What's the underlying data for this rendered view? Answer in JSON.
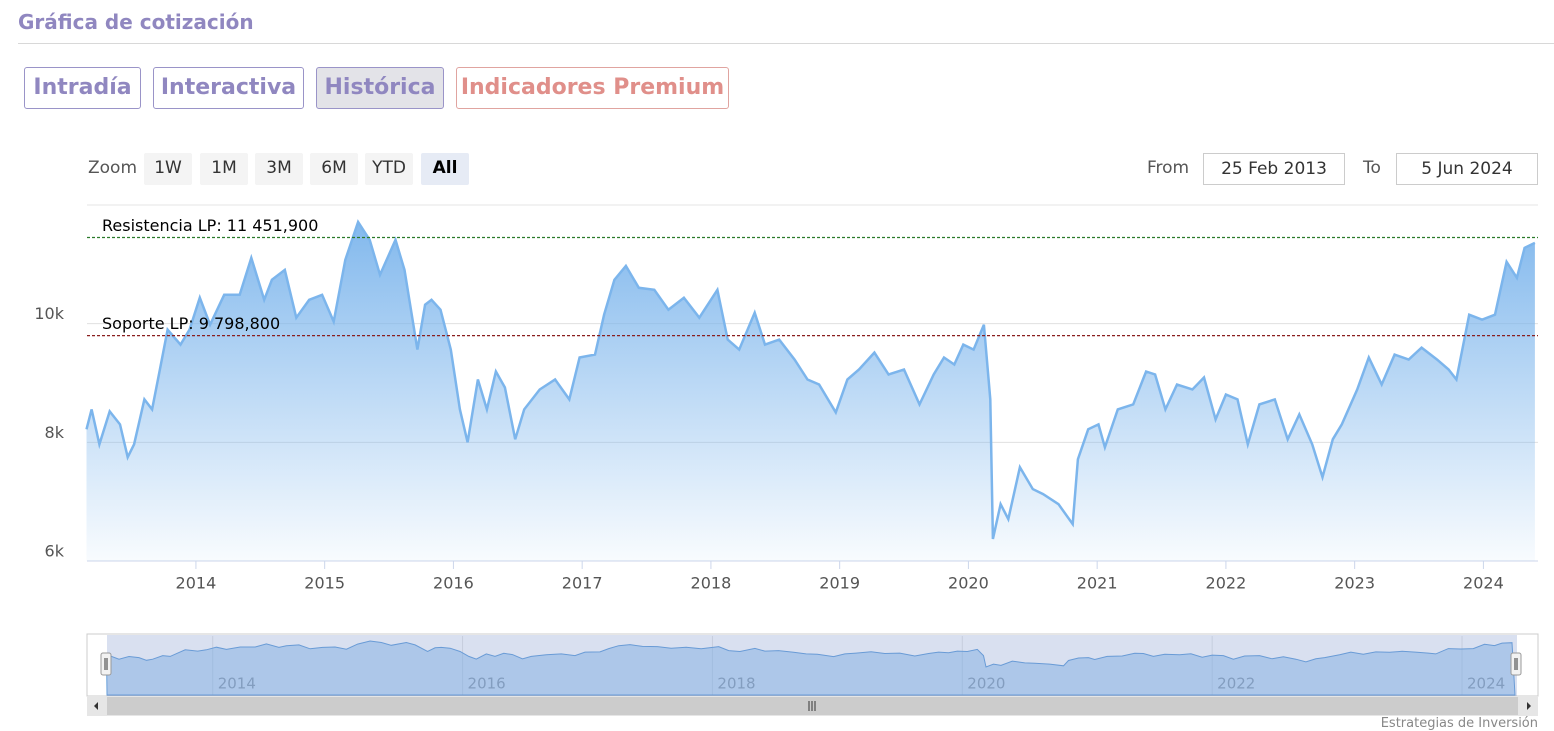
{
  "header": {
    "title": "Gráfica de cotización"
  },
  "tabs": [
    "Intradía",
    "Interactiva",
    "Histórica",
    "Indicadores Premium"
  ],
  "range_selector": {
    "zoom_label": "Zoom",
    "buttons": [
      "1W",
      "1M",
      "3M",
      "6M",
      "YTD",
      "All"
    ],
    "from_label": "From",
    "from": "25 Feb 2013",
    "to_label": "To",
    "to": "5 Jun 2024"
  },
  "chart_data": {
    "type": "area",
    "color": "#7cb5ec",
    "x": [
      2013.15,
      2013.19,
      2013.25,
      2013.33,
      2013.41,
      2013.47,
      2013.52,
      2013.6,
      2013.66,
      2013.72,
      2013.78,
      2013.88,
      2013.95,
      2014.03,
      2014.11,
      2014.22,
      2014.34,
      2014.43,
      2014.53,
      2014.59,
      2014.69,
      2014.78,
      2014.88,
      2014.98,
      2015.07,
      2015.16,
      2015.26,
      2015.35,
      2015.43,
      2015.55,
      2015.62,
      2015.72,
      2015.78,
      2015.83,
      2015.9,
      2015.98,
      2016.05,
      2016.11,
      2016.19,
      2016.26,
      2016.33,
      2016.4,
      2016.48,
      2016.55,
      2016.67,
      2016.79,
      2016.9,
      2016.98,
      2017.1,
      2017.17,
      2017.25,
      2017.34,
      2017.44,
      2017.56,
      2017.67,
      2017.79,
      2017.91,
      2018.05,
      2018.13,
      2018.22,
      2018.34,
      2018.42,
      2018.53,
      2018.65,
      2018.75,
      2018.84,
      2018.97,
      2019.06,
      2019.15,
      2019.27,
      2019.38,
      2019.5,
      2019.62,
      2019.73,
      2019.81,
      2019.89,
      2019.96,
      2020.04,
      2020.12,
      2020.17,
      2020.19,
      2020.25,
      2020.31,
      2020.4,
      2020.5,
      2020.58,
      2020.7,
      2020.81,
      2020.85,
      2020.93,
      2021.01,
      2021.06,
      2021.16,
      2021.28,
      2021.38,
      2021.45,
      2021.53,
      2021.62,
      2021.74,
      2021.83,
      2021.92,
      2022.0,
      2022.09,
      2022.17,
      2022.26,
      2022.38,
      2022.48,
      2022.57,
      2022.67,
      2022.75,
      2022.83,
      2022.9,
      2023.02,
      2023.11,
      2023.21,
      2023.31,
      2023.42,
      2023.52,
      2023.64,
      2023.73,
      2023.79,
      2023.89,
      2023.99,
      2024.09,
      2024.18,
      2024.26,
      2024.32,
      2024.4
    ],
    "values": [
      8219,
      8555,
      7967,
      8521,
      8303,
      7749,
      7967,
      8723,
      8555,
      9227,
      9899,
      9647,
      9899,
      10437,
      9983,
      10487,
      10487,
      11109,
      10403,
      10739,
      10907,
      10101,
      10403,
      10487,
      10034,
      11075,
      11714,
      11411,
      10823,
      11411,
      10907,
      9563,
      10319,
      10403,
      10235,
      9563,
      8555,
      8001,
      9059,
      8555,
      9193,
      8925,
      8051,
      8555,
      8891,
      9059,
      8723,
      9429,
      9479,
      10151,
      10739,
      10974,
      10605,
      10571,
      10235,
      10437,
      10101,
      10571,
      9731,
      9563,
      10185,
      9647,
      9731,
      9395,
      9059,
      8975,
      8504,
      9059,
      9227,
      9513,
      9143,
      9227,
      8639,
      9143,
      9429,
      9311,
      9647,
      9563,
      9983,
      8723,
      6370,
      6958,
      6706,
      7581,
      7211,
      7127,
      6958,
      6622,
      7715,
      8219,
      8303,
      7917,
      8555,
      8639,
      9193,
      9143,
      8555,
      8975,
      8891,
      9092,
      8387,
      8807,
      8723,
      7967,
      8639,
      8723,
      8051,
      8471,
      7967,
      7413,
      8051,
      8303,
      8891,
      9429,
      8975,
      9479,
      9395,
      9597,
      9395,
      9227,
      9059,
      10151,
      10067,
      10151,
      11042,
      10773,
      11277,
      11361
    ],
    "xlim": [
      2013.154,
      2024.424
    ],
    "xticks": [
      2014,
      2015,
      2016,
      2017,
      2018,
      2019,
      2020,
      2021,
      2022,
      2023,
      2024
    ],
    "ylim": [
      6000,
      12000
    ],
    "yticks": [
      {
        "value": 6000,
        "label": "6k"
      },
      {
        "value": 8000,
        "label": "8k"
      },
      {
        "value": 10000,
        "label": "10k"
      }
    ],
    "grid": true,
    "plot_lines": [
      {
        "value": 11451.9,
        "label": "Resistencia LP: 11 451,900",
        "color": "#2a7a2a"
      },
      {
        "value": 9798.8,
        "label": "Soporte LP: 9 798,800",
        "color": "#8a1f1f"
      }
    ],
    "navigator": {
      "xticks": [
        2014,
        2016,
        2018,
        2020,
        2022,
        2024
      ]
    }
  },
  "credits": "Estrategias de Inversión"
}
